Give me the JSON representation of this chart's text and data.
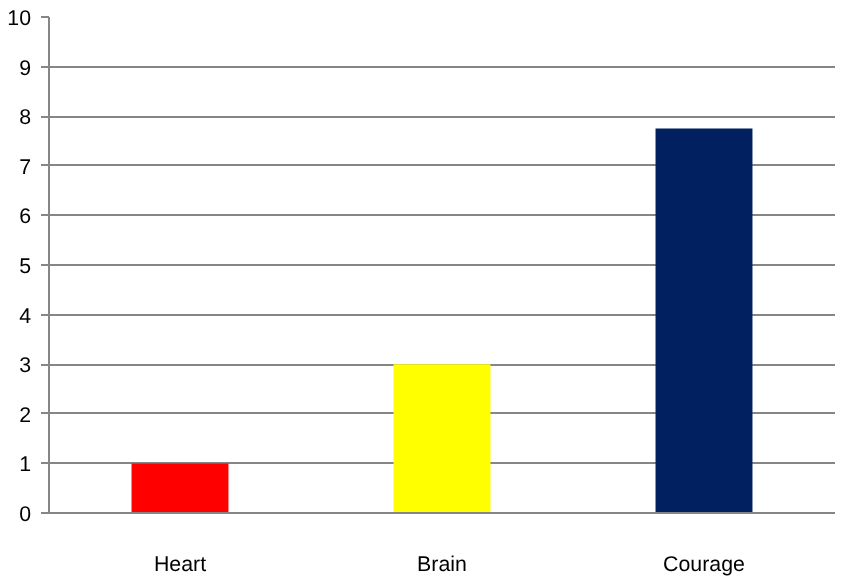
{
  "chart_data": {
    "type": "bar",
    "categories": [
      "Heart",
      "Brain",
      "Courage"
    ],
    "values": [
      1,
      3,
      7.75
    ],
    "colors": [
      "#ff0000",
      "#ffff00",
      "#002060"
    ],
    "ylim": [
      0,
      10
    ],
    "yticks": [
      0,
      1,
      2,
      3,
      4,
      5,
      6,
      7,
      8,
      9,
      10
    ],
    "grid": "y"
  }
}
